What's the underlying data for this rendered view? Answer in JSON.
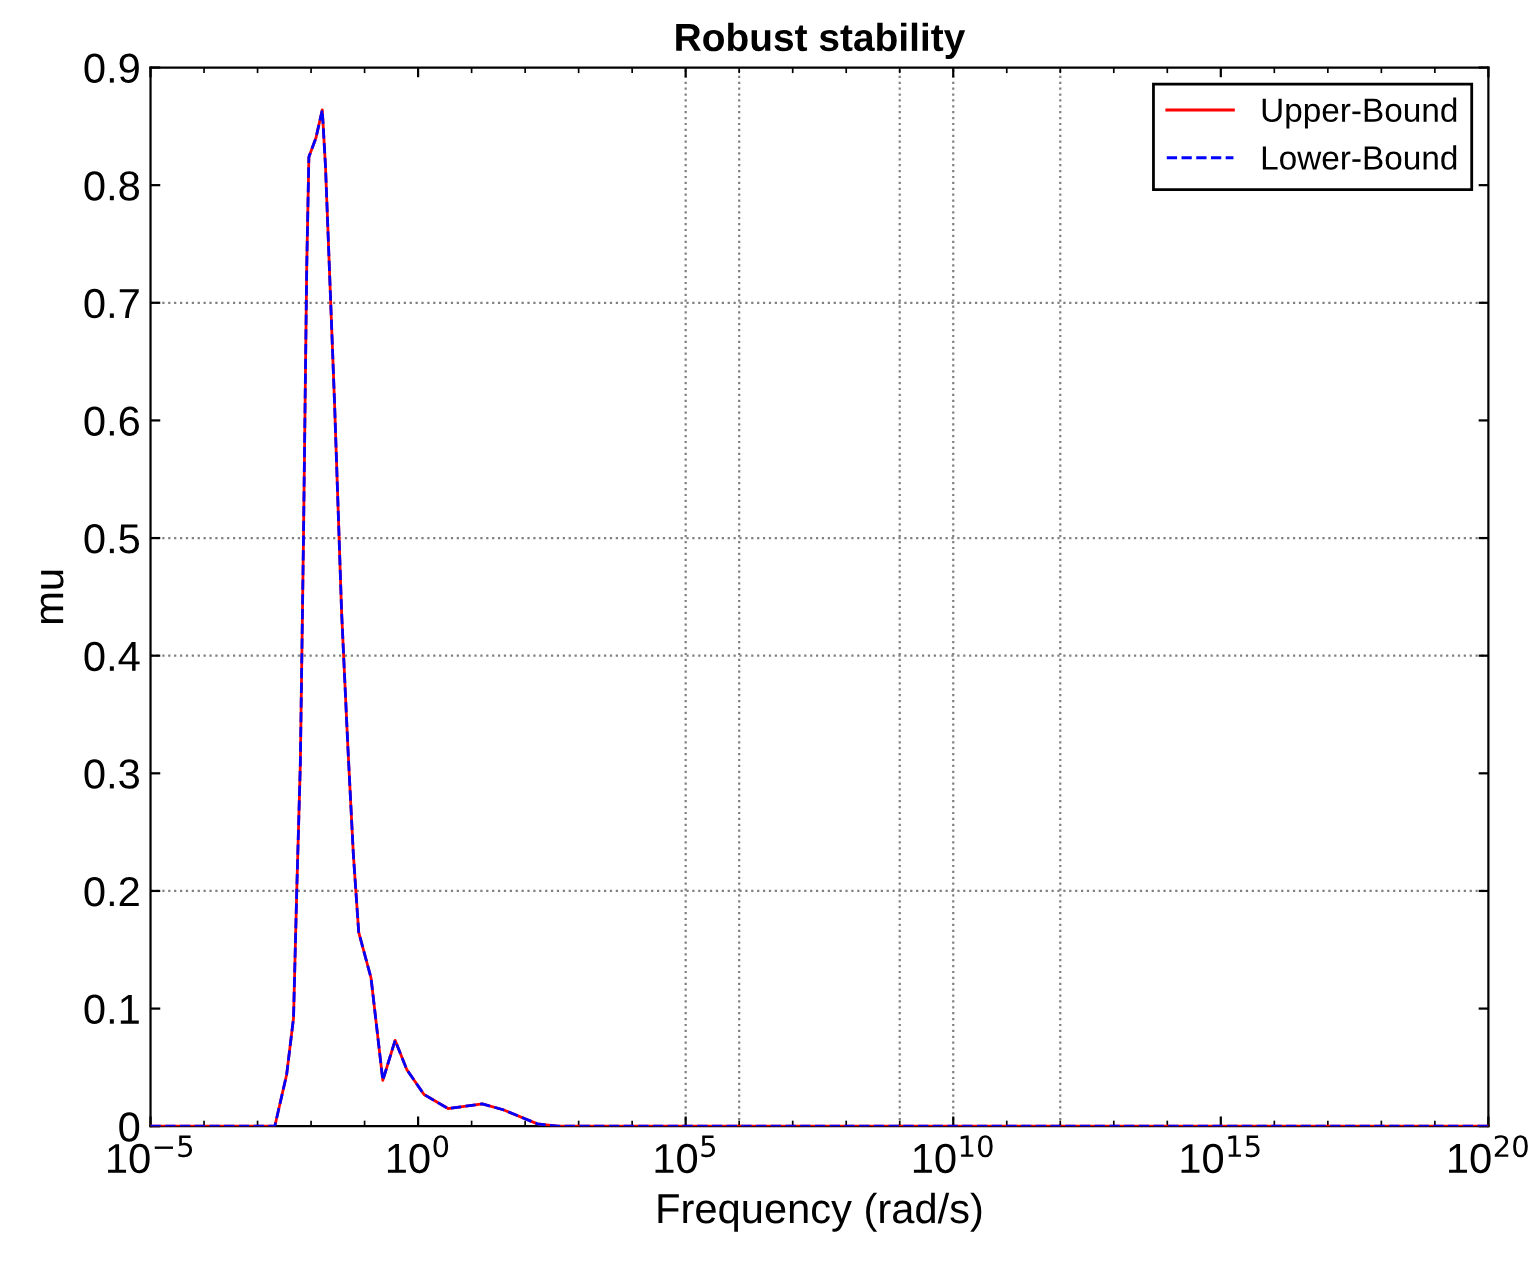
{
  "chart_data": {
    "type": "line",
    "title": "Robust stability",
    "xlabel": "Frequency (rad/s)",
    "ylabel": "mu",
    "log": "x",
    "x": [
      1e-05,
      0.0021,
      0.0035,
      0.0047,
      0.0054,
      0.0063,
      0.0072,
      0.0083,
      0.0091,
      0.0123,
      0.0162,
      0.0186,
      0.0275,
      0.0372,
      0.049,
      0.0617,
      0.0776,
      0.132,
      0.219,
      0.372,
      0.617,
      1.29,
      3.63,
      15.8,
      38.9,
      170,
      407,
      1e+20
    ],
    "series": [
      {
        "name": "Upper-Bound",
        "color": "#ff0000",
        "line_style": "solid",
        "values": [
          0,
          0,
          0.044,
          0.092,
          0.2,
          0.308,
          0.497,
          0.731,
          0.824,
          0.84,
          0.864,
          0.816,
          0.614,
          0.437,
          0.32,
          0.231,
          0.165,
          0.126,
          0.039,
          0.073,
          0.048,
          0.027,
          0.015,
          0.019,
          0.014,
          0.002,
          0,
          0
        ]
      },
      {
        "name": "Lower-Bound",
        "color": "#0000ff",
        "line_style": "dashed",
        "values": [
          0,
          0,
          0.044,
          0.092,
          0.2,
          0.308,
          0.497,
          0.731,
          0.824,
          0.84,
          0.864,
          0.816,
          0.614,
          0.437,
          0.32,
          0.231,
          0.165,
          0.126,
          0.039,
          0.073,
          0.048,
          0.027,
          0.015,
          0.019,
          0.014,
          0.002,
          0,
          0
        ]
      }
    ],
    "xlim": [
      1e-05,
      1e+20
    ],
    "xticks": [
      {
        "value": 1e-05,
        "label": "10$^{−5}$"
      },
      {
        "value": 1,
        "label": "10$^{0}$"
      },
      {
        "value": 100000.0,
        "label": "10$^{5}$"
      },
      {
        "value": 10000000000.0,
        "label": "10$^{10}$"
      },
      {
        "value": 1000000000000000.0,
        "label": "10$^{15}$"
      },
      {
        "value": 1e+20,
        "label": "10$^{20}$"
      }
    ],
    "ylim": [
      0,
      0.9
    ],
    "yticks": [
      0,
      0.1,
      0.2,
      0.3,
      0.4,
      0.5,
      0.6,
      0.7,
      0.8,
      0.9
    ],
    "ref_lines": [
      {
        "axis": "y",
        "value": 0.2,
        "color": "#808080",
        "line_style": "dotted"
      },
      {
        "axis": "y",
        "value": 0.4,
        "color": "#808080",
        "line_style": "dotted"
      },
      {
        "axis": "y",
        "value": 0.5,
        "color": "#808080",
        "line_style": "dotted"
      },
      {
        "axis": "y",
        "value": 0.7,
        "color": "#808080",
        "line_style": "dotted"
      },
      {
        "axis": "x",
        "value": 100000.0,
        "color": "#808080",
        "line_style": "dotted"
      },
      {
        "axis": "x",
        "value": 1000000.0,
        "color": "#808080",
        "line_style": "dotted"
      },
      {
        "axis": "x",
        "value": 1000000000.0,
        "color": "#808080",
        "line_style": "dotted"
      },
      {
        "axis": "x",
        "value": 10000000000.0,
        "color": "#808080",
        "line_style": "dotted"
      },
      {
        "axis": "x",
        "value": 1000000000000.0,
        "color": "#808080",
        "line_style": "dotted"
      }
    ],
    "grid": false,
    "legend": "top right"
  }
}
